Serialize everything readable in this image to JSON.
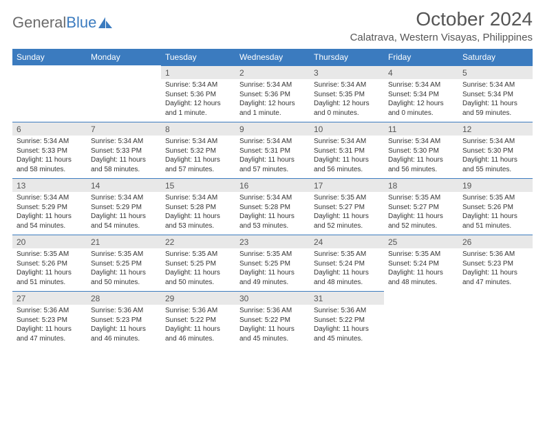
{
  "brand": {
    "part1": "General",
    "part2": "Blue"
  },
  "title": "October 2024",
  "location": "Calatrava, Western Visayas, Philippines",
  "colors": {
    "header_bg": "#3b7bbf",
    "header_fg": "#ffffff",
    "daynum_bg": "#e8e8e8",
    "text": "#333333",
    "title_color": "#555555"
  },
  "day_headers": [
    "Sunday",
    "Monday",
    "Tuesday",
    "Wednesday",
    "Thursday",
    "Friday",
    "Saturday"
  ],
  "weeks": [
    [
      null,
      null,
      {
        "n": "1",
        "sr": "Sunrise: 5:34 AM",
        "ss": "Sunset: 5:36 PM",
        "dl": "Daylight: 12 hours and 1 minute."
      },
      {
        "n": "2",
        "sr": "Sunrise: 5:34 AM",
        "ss": "Sunset: 5:36 PM",
        "dl": "Daylight: 12 hours and 1 minute."
      },
      {
        "n": "3",
        "sr": "Sunrise: 5:34 AM",
        "ss": "Sunset: 5:35 PM",
        "dl": "Daylight: 12 hours and 0 minutes."
      },
      {
        "n": "4",
        "sr": "Sunrise: 5:34 AM",
        "ss": "Sunset: 5:34 PM",
        "dl": "Daylight: 12 hours and 0 minutes."
      },
      {
        "n": "5",
        "sr": "Sunrise: 5:34 AM",
        "ss": "Sunset: 5:34 PM",
        "dl": "Daylight: 11 hours and 59 minutes."
      }
    ],
    [
      {
        "n": "6",
        "sr": "Sunrise: 5:34 AM",
        "ss": "Sunset: 5:33 PM",
        "dl": "Daylight: 11 hours and 58 minutes."
      },
      {
        "n": "7",
        "sr": "Sunrise: 5:34 AM",
        "ss": "Sunset: 5:33 PM",
        "dl": "Daylight: 11 hours and 58 minutes."
      },
      {
        "n": "8",
        "sr": "Sunrise: 5:34 AM",
        "ss": "Sunset: 5:32 PM",
        "dl": "Daylight: 11 hours and 57 minutes."
      },
      {
        "n": "9",
        "sr": "Sunrise: 5:34 AM",
        "ss": "Sunset: 5:31 PM",
        "dl": "Daylight: 11 hours and 57 minutes."
      },
      {
        "n": "10",
        "sr": "Sunrise: 5:34 AM",
        "ss": "Sunset: 5:31 PM",
        "dl": "Daylight: 11 hours and 56 minutes."
      },
      {
        "n": "11",
        "sr": "Sunrise: 5:34 AM",
        "ss": "Sunset: 5:30 PM",
        "dl": "Daylight: 11 hours and 56 minutes."
      },
      {
        "n": "12",
        "sr": "Sunrise: 5:34 AM",
        "ss": "Sunset: 5:30 PM",
        "dl": "Daylight: 11 hours and 55 minutes."
      }
    ],
    [
      {
        "n": "13",
        "sr": "Sunrise: 5:34 AM",
        "ss": "Sunset: 5:29 PM",
        "dl": "Daylight: 11 hours and 54 minutes."
      },
      {
        "n": "14",
        "sr": "Sunrise: 5:34 AM",
        "ss": "Sunset: 5:29 PM",
        "dl": "Daylight: 11 hours and 54 minutes."
      },
      {
        "n": "15",
        "sr": "Sunrise: 5:34 AM",
        "ss": "Sunset: 5:28 PM",
        "dl": "Daylight: 11 hours and 53 minutes."
      },
      {
        "n": "16",
        "sr": "Sunrise: 5:34 AM",
        "ss": "Sunset: 5:28 PM",
        "dl": "Daylight: 11 hours and 53 minutes."
      },
      {
        "n": "17",
        "sr": "Sunrise: 5:35 AM",
        "ss": "Sunset: 5:27 PM",
        "dl": "Daylight: 11 hours and 52 minutes."
      },
      {
        "n": "18",
        "sr": "Sunrise: 5:35 AM",
        "ss": "Sunset: 5:27 PM",
        "dl": "Daylight: 11 hours and 52 minutes."
      },
      {
        "n": "19",
        "sr": "Sunrise: 5:35 AM",
        "ss": "Sunset: 5:26 PM",
        "dl": "Daylight: 11 hours and 51 minutes."
      }
    ],
    [
      {
        "n": "20",
        "sr": "Sunrise: 5:35 AM",
        "ss": "Sunset: 5:26 PM",
        "dl": "Daylight: 11 hours and 51 minutes."
      },
      {
        "n": "21",
        "sr": "Sunrise: 5:35 AM",
        "ss": "Sunset: 5:25 PM",
        "dl": "Daylight: 11 hours and 50 minutes."
      },
      {
        "n": "22",
        "sr": "Sunrise: 5:35 AM",
        "ss": "Sunset: 5:25 PM",
        "dl": "Daylight: 11 hours and 50 minutes."
      },
      {
        "n": "23",
        "sr": "Sunrise: 5:35 AM",
        "ss": "Sunset: 5:25 PM",
        "dl": "Daylight: 11 hours and 49 minutes."
      },
      {
        "n": "24",
        "sr": "Sunrise: 5:35 AM",
        "ss": "Sunset: 5:24 PM",
        "dl": "Daylight: 11 hours and 48 minutes."
      },
      {
        "n": "25",
        "sr": "Sunrise: 5:35 AM",
        "ss": "Sunset: 5:24 PM",
        "dl": "Daylight: 11 hours and 48 minutes."
      },
      {
        "n": "26",
        "sr": "Sunrise: 5:36 AM",
        "ss": "Sunset: 5:23 PM",
        "dl": "Daylight: 11 hours and 47 minutes."
      }
    ],
    [
      {
        "n": "27",
        "sr": "Sunrise: 5:36 AM",
        "ss": "Sunset: 5:23 PM",
        "dl": "Daylight: 11 hours and 47 minutes."
      },
      {
        "n": "28",
        "sr": "Sunrise: 5:36 AM",
        "ss": "Sunset: 5:23 PM",
        "dl": "Daylight: 11 hours and 46 minutes."
      },
      {
        "n": "29",
        "sr": "Sunrise: 5:36 AM",
        "ss": "Sunset: 5:22 PM",
        "dl": "Daylight: 11 hours and 46 minutes."
      },
      {
        "n": "30",
        "sr": "Sunrise: 5:36 AM",
        "ss": "Sunset: 5:22 PM",
        "dl": "Daylight: 11 hours and 45 minutes."
      },
      {
        "n": "31",
        "sr": "Sunrise: 5:36 AM",
        "ss": "Sunset: 5:22 PM",
        "dl": "Daylight: 11 hours and 45 minutes."
      },
      null,
      null
    ]
  ]
}
